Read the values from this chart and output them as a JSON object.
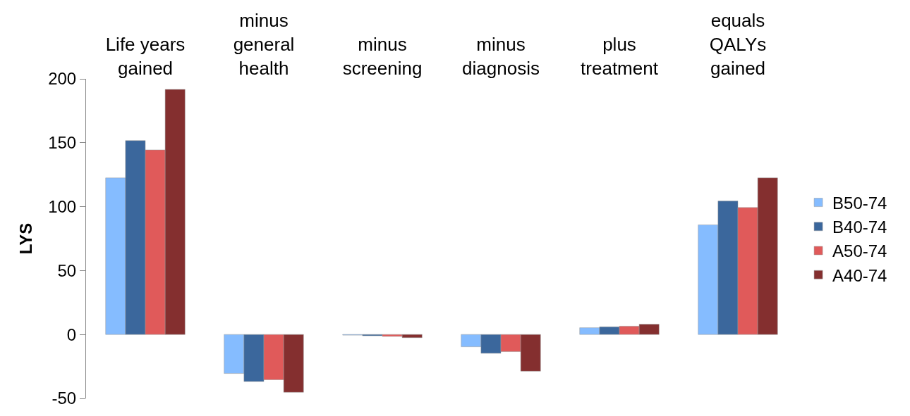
{
  "chart_data": {
    "type": "bar",
    "ylabel": "LYS",
    "categories": [
      "Life years\ngained",
      "minus\ngeneral\nhealth",
      "minus\nscreening",
      "minus\ndiagnosis",
      "plus\ntreatment",
      "equals\nQALYs\ngained"
    ],
    "series": [
      {
        "name": "B50-74",
        "color": "#85bcff",
        "values": [
          122.5,
          -30.5,
          -0.5,
          -9.6,
          5.3,
          85.8
        ]
      },
      {
        "name": "B40-74",
        "color": "#3b679c",
        "values": [
          151.7,
          -36.8,
          -1,
          -14.7,
          6,
          104.4
        ]
      },
      {
        "name": "A50-74",
        "color": "#e05a5a",
        "values": [
          144.4,
          -35.4,
          -1.5,
          -13.4,
          6.5,
          99.3
        ]
      },
      {
        "name": "A40-74",
        "color": "#842f2f",
        "values": [
          191.7,
          -45.2,
          -2.5,
          -28.7,
          8,
          122.5
        ]
      }
    ],
    "ylim": [
      -50,
      200
    ],
    "yticks": [
      -50,
      0,
      50,
      100,
      150,
      200
    ],
    "legend": "right"
  }
}
